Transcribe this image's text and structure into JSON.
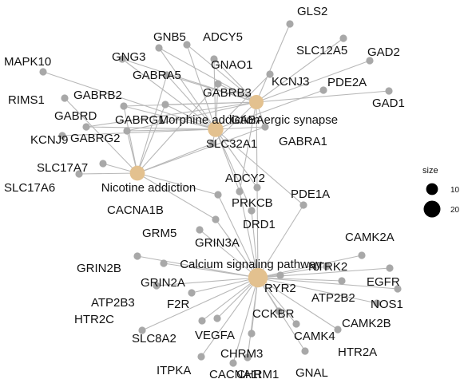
{
  "legend": {
    "title": "size",
    "items": [
      {
        "label": "10",
        "size": 10
      },
      {
        "label": "20",
        "size": 20
      }
    ]
  },
  "colors": {
    "gene": "#a8a8a8",
    "term": "#e3c18f",
    "edge": "#b8b8b8"
  },
  "terms": [
    {
      "id": "gaba",
      "label": "GABAergic synapse",
      "size": 12
    },
    {
      "id": "morph",
      "label": "Morphine addiction",
      "size": 14
    },
    {
      "id": "nic",
      "label": "Nicotine addiction",
      "size": 13
    },
    {
      "id": "calc",
      "label": "Calcium signaling pathway",
      "size": 22
    }
  ],
  "genes": [
    {
      "label": "GLS2",
      "terms": [
        "gaba"
      ]
    },
    {
      "label": "SLC12A5",
      "terms": [
        "gaba"
      ]
    },
    {
      "label": "GAD2",
      "terms": [
        "gaba"
      ]
    },
    {
      "label": "GAD1",
      "terms": [
        "gaba"
      ]
    },
    {
      "label": "KCNJ3",
      "terms": [
        "morph"
      ]
    },
    {
      "label": "PDE2A",
      "terms": [
        "morph"
      ]
    },
    {
      "label": "GNB5",
      "terms": [
        "gaba",
        "morph"
      ]
    },
    {
      "label": "ADCY5",
      "terms": [
        "gaba",
        "morph"
      ]
    },
    {
      "label": "GNAO1",
      "terms": [
        "gaba",
        "morph"
      ]
    },
    {
      "label": "GNG3",
      "terms": [
        "gaba",
        "morph"
      ]
    },
    {
      "label": "GABRA5",
      "terms": [
        "gaba",
        "morph",
        "nic"
      ]
    },
    {
      "label": "GABRB3",
      "terms": [
        "gaba",
        "morph",
        "nic"
      ]
    },
    {
      "label": "GABRB2",
      "terms": [
        "gaba",
        "morph",
        "nic"
      ]
    },
    {
      "label": "GABRG1",
      "terms": [
        "gaba",
        "morph",
        "nic"
      ]
    },
    {
      "label": "GABRG2",
      "terms": [
        "gaba",
        "morph",
        "nic"
      ]
    },
    {
      "label": "GABRD",
      "terms": [
        "gaba",
        "morph"
      ]
    },
    {
      "label": "GABRA1",
      "terms": [
        "gaba",
        "morph",
        "nic"
      ]
    },
    {
      "label": "MAPK10",
      "terms": [
        "morph"
      ]
    },
    {
      "label": "RIMS1",
      "terms": [
        "nic"
      ]
    },
    {
      "label": "KCNJ9",
      "terms": [
        "morph"
      ]
    },
    {
      "label": "SLC32A1",
      "terms": [
        "gaba",
        "morph",
        "nic"
      ]
    },
    {
      "label": "SLC17A7",
      "terms": [
        "nic"
      ]
    },
    {
      "label": "SLC17A6",
      "terms": [
        "nic"
      ]
    },
    {
      "label": "ADCY2",
      "terms": [
        "gaba",
        "morph",
        "calc"
      ]
    },
    {
      "label": "PRKCB",
      "terms": [
        "gaba",
        "morph",
        "calc"
      ]
    },
    {
      "label": "PDE1A",
      "terms": [
        "morph",
        "calc"
      ]
    },
    {
      "label": "DRD1",
      "terms": [
        "morph",
        "calc"
      ]
    },
    {
      "label": "CACNA1B",
      "terms": [
        "nic",
        "calc"
      ]
    },
    {
      "label": "GRM5",
      "terms": [
        "calc"
      ]
    },
    {
      "label": "GRIN3A",
      "terms": [
        "nic",
        "calc"
      ]
    },
    {
      "label": "GRIN2B",
      "terms": [
        "calc"
      ]
    },
    {
      "label": "GRIN2A",
      "terms": [
        "calc"
      ]
    },
    {
      "label": "CAMK2A",
      "terms": [
        "calc"
      ]
    },
    {
      "label": "NTRK2",
      "terms": [
        "calc"
      ]
    },
    {
      "label": "RYR2",
      "terms": [
        "calc"
      ]
    },
    {
      "label": "EGFR",
      "terms": [
        "calc"
      ]
    },
    {
      "label": "ATP2B2",
      "terms": [
        "calc"
      ]
    },
    {
      "label": "NOS1",
      "terms": [
        "calc"
      ]
    },
    {
      "label": "ATP2B3",
      "terms": [
        "calc"
      ]
    },
    {
      "label": "F2R",
      "terms": [
        "calc"
      ]
    },
    {
      "label": "HTR2C",
      "terms": [
        "calc"
      ]
    },
    {
      "label": "CAMK2B",
      "terms": [
        "calc"
      ]
    },
    {
      "label": "CCKBR",
      "terms": [
        "calc"
      ]
    },
    {
      "label": "SLC8A2",
      "terms": [
        "calc"
      ]
    },
    {
      "label": "VEGFA",
      "terms": [
        "calc"
      ]
    },
    {
      "label": "CAMK4",
      "terms": [
        "calc"
      ]
    },
    {
      "label": "HTR2A",
      "terms": [
        "calc"
      ]
    },
    {
      "label": "CHRM3",
      "terms": [
        "calc"
      ]
    },
    {
      "label": "ITPKA",
      "terms": [
        "calc"
      ]
    },
    {
      "label": "CACNA1I",
      "terms": [
        "calc"
      ]
    },
    {
      "label": "CHRM1",
      "terms": [
        "calc"
      ]
    },
    {
      "label": "GNAL",
      "terms": [
        "calc"
      ]
    }
  ]
}
